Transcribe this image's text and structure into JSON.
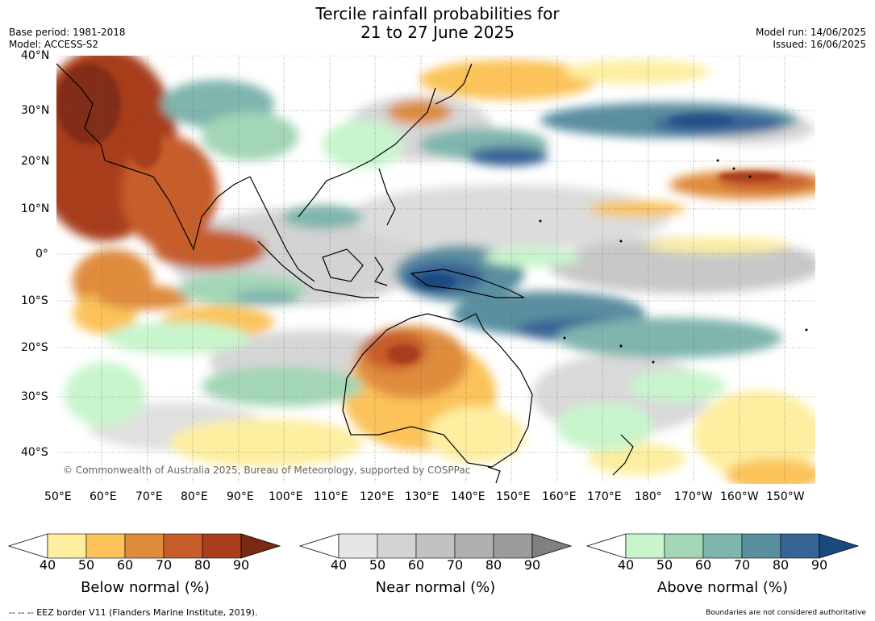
{
  "title": {
    "line1": "Tercile rainfall probabilities for",
    "line2": "21 to 27 June 2025"
  },
  "meta": {
    "base_period": "Base period: 1981-2018",
    "model": "Model: ACCESS-S2",
    "model_run": "Model run: 14/06/2025",
    "issued": "Issued: 16/06/2025"
  },
  "map": {
    "lat_labels": [
      "40°N",
      "30°N",
      "20°N",
      "10°N",
      "0°",
      "10°S",
      "20°S",
      "30°S",
      "40°S"
    ],
    "lon_labels": [
      "50°E",
      "60°E",
      "70°E",
      "80°E",
      "90°E",
      "100°E",
      "110°E",
      "120°E",
      "130°E",
      "140°E",
      "150°E",
      "160°E",
      "170°E",
      "180°",
      "170°W",
      "160°W",
      "150°W"
    ],
    "copyright": "© Commonwealth of Australia 2025, Bureau of Meteorology, supported by COSPPac"
  },
  "colorbars": [
    {
      "label": "Below normal (%)",
      "ticks": [
        "40",
        "50",
        "60",
        "70",
        "80",
        "90"
      ],
      "colors": [
        "#fdeea0",
        "#fbc35a",
        "#df8c3c",
        "#c65d2a",
        "#a83e1c",
        "#7a2a14"
      ]
    },
    {
      "label": "Near normal (%)",
      "ticks": [
        "40",
        "50",
        "60",
        "70",
        "80",
        "90"
      ],
      "colors": [
        "#e6e6e6",
        "#d3d3d3",
        "#c2c2c2",
        "#b0b0b0",
        "#9c9c9c",
        "#808080"
      ]
    },
    {
      "label": "Above normal (%)",
      "ticks": [
        "40",
        "50",
        "60",
        "70",
        "80",
        "90"
      ],
      "colors": [
        "#c8f5cc",
        "#a3d6b6",
        "#7fb5ad",
        "#5a8fa0",
        "#376395",
        "#1a4a80"
      ]
    }
  ],
  "footer": {
    "eez": "--  --  -- EEZ border V11 (Flanders Marine Institute, 2019).",
    "boundaries": "Boundaries are not considered authoritative"
  }
}
